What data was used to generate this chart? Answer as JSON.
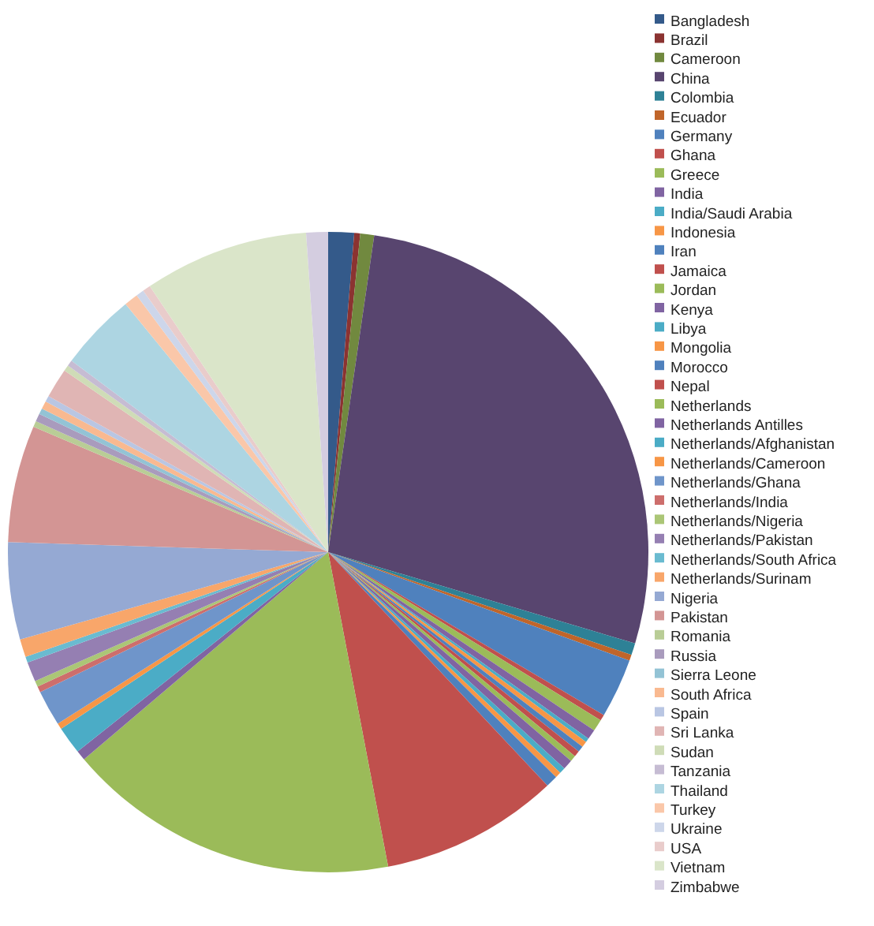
{
  "chart_data": {
    "type": "pie",
    "legend": "right",
    "categories": [
      "Bangladesh",
      "Brazil",
      "Cameroon",
      "China",
      "Colombia",
      "Ecuador",
      "Germany",
      "Ghana",
      "Greece",
      "India",
      "India/Saudi Arabia",
      "Indonesia",
      "Iran",
      "Jamaica",
      "Jordan",
      "Kenya",
      "Libya",
      "Mongolia",
      "Morocco",
      "Nepal",
      "Netherlands",
      "Netherlands Antilles",
      "Netherlands/Afghanistan",
      "Netherlands/Cameroon",
      "Netherlands/Ghana",
      "Netherlands/India",
      "Netherlands/Nigeria",
      "Netherlands/Pakistan",
      "Netherlands/South Africa",
      "Netherlands/Surinam",
      "Nigeria",
      "Pakistan",
      "Romania",
      "Russia",
      "Sierra Leone",
      "South Africa",
      "Spain",
      "Sri Lanka",
      "Sudan",
      "Tanzania",
      "Thailand",
      "Turkey",
      "Ukraine",
      "USA",
      "Vietnam",
      "Zimbabwe"
    ],
    "values": [
      1.3,
      0.3,
      0.7,
      27.3,
      0.6,
      0.3,
      3.0,
      0.3,
      0.6,
      0.5,
      0.2,
      0.3,
      0.3,
      0.3,
      0.3,
      0.5,
      0.3,
      0.3,
      0.6,
      9.0,
      16.8,
      0.5,
      1.4,
      0.3,
      1.8,
      0.3,
      0.3,
      1.0,
      0.3,
      0.9,
      4.9,
      5.9,
      0.3,
      0.4,
      0.3,
      0.4,
      0.3,
      1.5,
      0.3,
      0.3,
      3.9,
      0.7,
      0.4,
      0.4,
      8.3,
      1.1
    ],
    "colors": [
      "#345a8a",
      "#8b3331",
      "#71893f",
      "#58456f",
      "#2e8196",
      "#c0652a",
      "#4f81bd",
      "#c0504d",
      "#9bbb59",
      "#8064a2",
      "#4bacc6",
      "#f79646",
      "#4f81bd",
      "#c0504d",
      "#9bbb59",
      "#8064a2",
      "#4bacc6",
      "#f79646",
      "#4f81bd",
      "#c0504d",
      "#9bbb59",
      "#8064a2",
      "#4bacc6",
      "#f79646",
      "#6f95ca",
      "#cd6e6c",
      "#abc676",
      "#957fb2",
      "#6abbd0",
      "#f8a66a",
      "#95a9d3",
      "#d39594",
      "#b9cd96",
      "#a99bbd",
      "#93c3d5",
      "#f9b990",
      "#b9c6e3",
      "#e0b5b4",
      "#cfdcb7",
      "#c6bcd3",
      "#add5e2",
      "#fac7a9",
      "#cdd6ea",
      "#e9cccb",
      "#dae5c9",
      "#d4cde0"
    ]
  }
}
